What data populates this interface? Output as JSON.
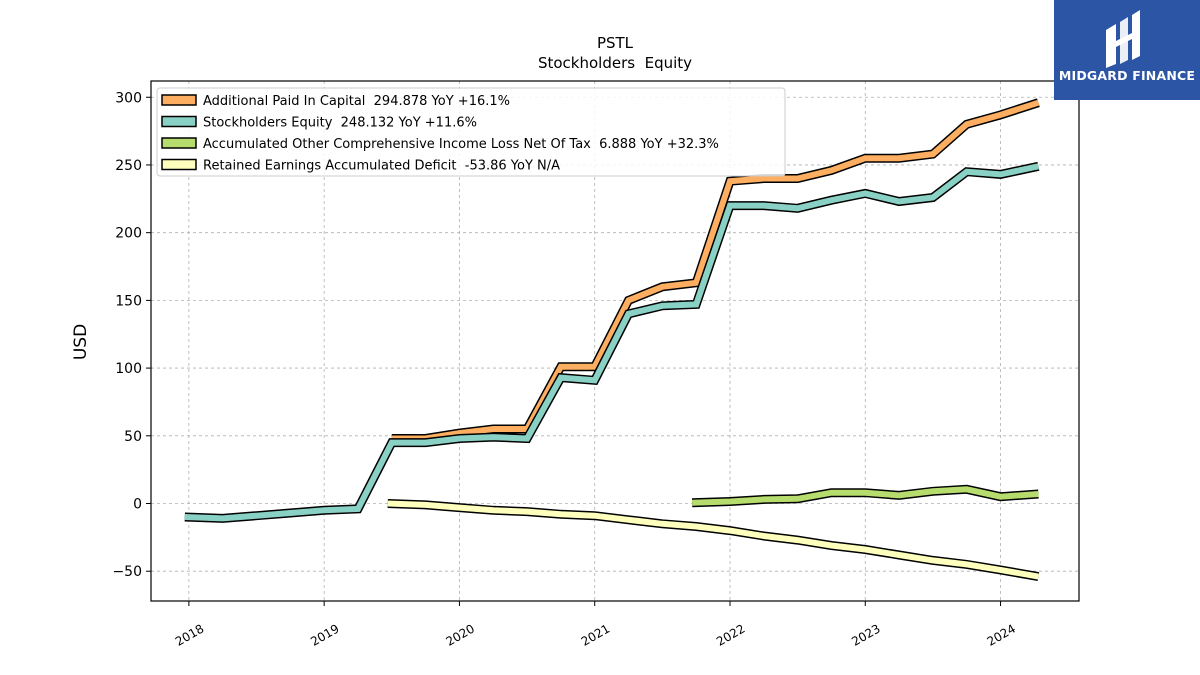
{
  "brand": {
    "name": "MIDGARD FINANCE",
    "icon": "midgard-logo-icon"
  },
  "chart_data": {
    "type": "line",
    "title": "PSTL",
    "subtitle": "Stockholders  Equity",
    "ylabel": "USD",
    "xlabel": "",
    "xlim": [
      2017.72,
      2024.58
    ],
    "ylim": [
      -72,
      312
    ],
    "xticks": [
      2018,
      2019,
      2020,
      2021,
      2022,
      2023,
      2024
    ],
    "xtick_labels": [
      "2018",
      "2019",
      "2020",
      "2021",
      "2022",
      "2023",
      "2024"
    ],
    "yticks": [
      -50,
      0,
      50,
      100,
      150,
      200,
      250,
      300
    ],
    "ytick_labels": [
      "−50",
      "0",
      "50",
      "100",
      "150",
      "200",
      "250",
      "300"
    ],
    "grid": true,
    "legend_position": "top-left",
    "series": [
      {
        "name": "Additional Paid In Capital  294.878 YoY +16.1%",
        "color": "#fdae61",
        "x": [
          2019.5,
          2019.75,
          2020.0,
          2020.25,
          2020.5,
          2020.75,
          2021.0,
          2021.25,
          2021.5,
          2021.75,
          2022.0,
          2022.25,
          2022.5,
          2022.75,
          2023.0,
          2023.25,
          2023.5,
          2023.75,
          2024.0,
          2024.28
        ],
        "y": [
          48,
          48,
          52,
          55,
          55,
          101,
          101,
          150,
          160,
          163,
          238,
          240,
          240,
          246,
          255,
          255,
          258,
          280,
          287,
          296
        ]
      },
      {
        "name": "Stockholders Equity  248.132 YoY +11.6%",
        "color": "#88d1c4",
        "x": [
          2017.97,
          2018.25,
          2018.5,
          2018.75,
          2019.0,
          2019.25,
          2019.5,
          2019.75,
          2020.0,
          2020.25,
          2020.5,
          2020.75,
          2021.0,
          2021.25,
          2021.5,
          2021.75,
          2022.0,
          2022.25,
          2022.5,
          2022.75,
          2023.0,
          2023.25,
          2023.5,
          2023.75,
          2024.0,
          2024.28
        ],
        "y": [
          -10,
          -11,
          -9,
          -7,
          -5,
          -4,
          45,
          45,
          48,
          49,
          48,
          93,
          91,
          140,
          146,
          147,
          220,
          220,
          218,
          224,
          229,
          223,
          226,
          245,
          243,
          249
        ]
      },
      {
        "name": "Accumulated Other Comprehensive Income Loss Net Of Tax  6.888 YoY +32.3%",
        "color": "#b5dc6c",
        "x": [
          2021.72,
          2022.0,
          2022.25,
          2022.5,
          2022.75,
          2023.0,
          2023.25,
          2023.5,
          2023.75,
          2024.0,
          2024.28
        ],
        "y": [
          0.5,
          1.5,
          3,
          3.5,
          8,
          8,
          6,
          9,
          10.5,
          5,
          7
        ]
      },
      {
        "name": "Retained Earnings Accumulated Deficit  -53.86 YoY N/A",
        "color": "#fefebd",
        "x": [
          2019.47,
          2019.75,
          2020.0,
          2020.25,
          2020.5,
          2020.75,
          2021.0,
          2021.25,
          2021.5,
          2021.75,
          2022.0,
          2022.25,
          2022.5,
          2022.75,
          2023.0,
          2023.25,
          2023.5,
          2023.75,
          2024.0,
          2024.28
        ],
        "y": [
          0,
          -1,
          -3,
          -5,
          -6,
          -8,
          -9,
          -12,
          -15,
          -17,
          -20,
          -24,
          -27,
          -31,
          -34,
          -38,
          -42,
          -45,
          -49,
          -54
        ]
      }
    ]
  }
}
